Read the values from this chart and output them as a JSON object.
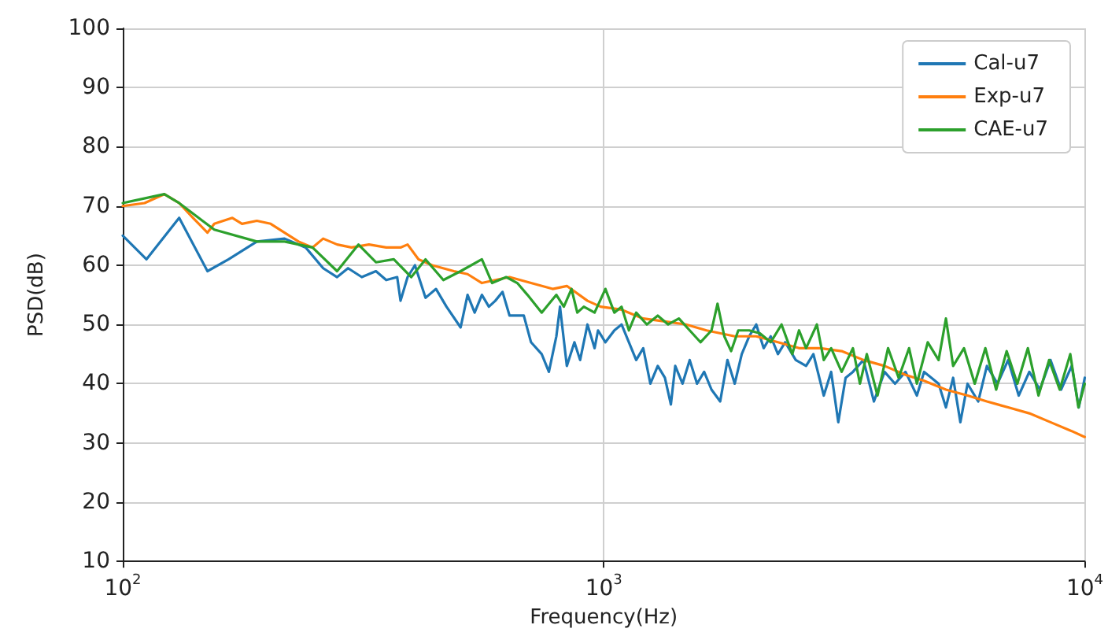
{
  "chart_data": {
    "type": "line",
    "xlabel": "Frequency(Hz)",
    "ylabel": "PSD(dB)",
    "log": "x",
    "grid": true,
    "legend": "top right",
    "marker": "none",
    "line_style": "solid",
    "xlim": [
      100,
      10000
    ],
    "xticks": [
      {
        "value": 100,
        "label": "10$^{2}$"
      },
      {
        "value": 1000,
        "label": "10$^{3}$"
      },
      {
        "value": 10000,
        "label": "10$^{4}$"
      }
    ],
    "ylim": [
      10,
      100
    ],
    "yticks": [
      10,
      20,
      30,
      40,
      50,
      60,
      70,
      80,
      90,
      100
    ],
    "series": [
      {
        "name": "Cal-u7",
        "color": "#1f77b4",
        "x": [
          100,
          112,
          131,
          150,
          166,
          190,
          217,
          240,
          261,
          279,
          294,
          314,
          336,
          353,
          372,
          378,
          391,
          405,
          426,
          448,
          471,
          504,
          521,
          539,
          558,
          577,
          595,
          616,
          637,
          682,
          706,
          743,
          769,
          797,
          811,
          838,
          869,
          893,
          925,
          957,
          973,
          1008,
          1052,
          1089,
          1128,
          1168,
          1208,
          1250,
          1295,
          1340,
          1379,
          1408,
          1458,
          1509,
          1563,
          1617,
          1675,
          1746,
          1808,
          1872,
          1936,
          2006,
          2075,
          2150,
          2224,
          2302,
          2383,
          2507,
          2634,
          2728,
          2867,
          2970,
          3073,
          3183,
          3296,
          3466,
          3645,
          3835,
          4032,
          4240,
          4477,
          4634,
          4800,
          4968,
          5145,
          5326,
          5513,
          5706,
          6005,
          6260,
          6586,
          6929,
          7290,
          7669,
          8067,
          8487,
          8929,
          9395,
          9718,
          10000
        ],
        "values": [
          65,
          61,
          68,
          59,
          61,
          64,
          64.5,
          63,
          59.5,
          58,
          59.5,
          58,
          59,
          57.5,
          58,
          54,
          58,
          60,
          54.5,
          56,
          53,
          49.5,
          55,
          52,
          55,
          53,
          54,
          55.5,
          51.5,
          51.5,
          47,
          45,
          42,
          48,
          53,
          43,
          47,
          44,
          50,
          46,
          49,
          47,
          49,
          50,
          47,
          44,
          46,
          40,
          43,
          41,
          36.5,
          43,
          40,
          44,
          40,
          42,
          39,
          37,
          44,
          40,
          45,
          48,
          50,
          46,
          48,
          45,
          47,
          44,
          43,
          45,
          38,
          42,
          33.5,
          41,
          42,
          44,
          37,
          42,
          40,
          42,
          38,
          42,
          41,
          40,
          36,
          41,
          33.5,
          40,
          37,
          43,
          40,
          44,
          38,
          42,
          39,
          44,
          39,
          43,
          36,
          41
        ]
      },
      {
        "name": "Exp-u7",
        "color": "#ff7f0e",
        "x": [
          100,
          111,
          122,
          131,
          140,
          150,
          155,
          169,
          177,
          190,
          203,
          217,
          232,
          248,
          261,
          279,
          299,
          325,
          353,
          378,
          391,
          412,
          440,
          488,
          521,
          558,
          595,
          637,
          706,
          783,
          838,
          925,
          985,
          1089,
          1208,
          1340,
          1483,
          1635,
          1872,
          2075,
          2302,
          2547,
          2820,
          3123,
          3466,
          3835,
          4240,
          4634,
          5145,
          5706,
          6260,
          6929,
          7669,
          8487,
          9395,
          10000
        ],
        "values": [
          70,
          70.5,
          72,
          70.5,
          68,
          65.5,
          67,
          68,
          67,
          67.5,
          67,
          65.5,
          64,
          63,
          64.5,
          63.5,
          63,
          63.5,
          63,
          63,
          63.5,
          61,
          60,
          59,
          58.5,
          57,
          57.5,
          58,
          57,
          56,
          56.5,
          54,
          53,
          52.5,
          51,
          50.5,
          50,
          49,
          48,
          48,
          47,
          46,
          46,
          45.5,
          44,
          43,
          41.5,
          40.5,
          39,
          38,
          37,
          36,
          35,
          33.5,
          32,
          31
        ]
      },
      {
        "name": "CAE-u7",
        "color": "#2ca02c",
        "x": [
          100,
          122,
          131,
          155,
          190,
          217,
          248,
          279,
          309,
          336,
          366,
          398,
          426,
          464,
          504,
          558,
          586,
          627,
          661,
          694,
          743,
          797,
          826,
          857,
          881,
          909,
          957,
          1008,
          1052,
          1089,
          1128,
          1168,
          1229,
          1295,
          1361,
          1433,
          1509,
          1589,
          1675,
          1724,
          1781,
          1840,
          1904,
          2006,
          2112,
          2224,
          2342,
          2466,
          2547,
          2634,
          2774,
          2867,
          2970,
          3123,
          3296,
          3409,
          3523,
          3708,
          3900,
          4103,
          4313,
          4477,
          4716,
          4968,
          5145,
          5326,
          5609,
          5906,
          6215,
          6544,
          6880,
          7242,
          7617,
          8013,
          8431,
          8870,
          9330,
          9701,
          10000
        ],
        "values": [
          70.5,
          72,
          70.5,
          66,
          64,
          64,
          63,
          59,
          63.5,
          60.5,
          61,
          58,
          61,
          57.5,
          59,
          61,
          57,
          58,
          57,
          55,
          52,
          55,
          53,
          56,
          52,
          53,
          52,
          56,
          52,
          53,
          49,
          52,
          50,
          51.5,
          50,
          51,
          49,
          47,
          49,
          53.5,
          48,
          45.5,
          49,
          49,
          48.5,
          47,
          50,
          45,
          49,
          46,
          50,
          44,
          46,
          42,
          46,
          40,
          45,
          38,
          46,
          41,
          46,
          40,
          47,
          44,
          51,
          43,
          46,
          40,
          46,
          39,
          45.5,
          40,
          46,
          38,
          44,
          39,
          45,
          36,
          40
        ]
      }
    ]
  }
}
